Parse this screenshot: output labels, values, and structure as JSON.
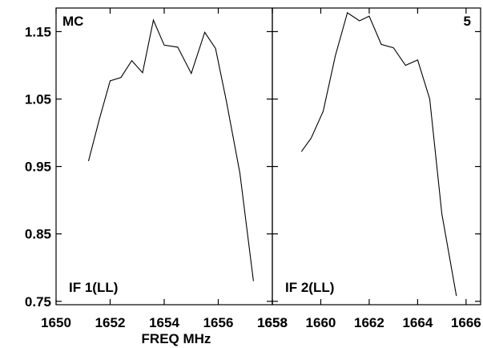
{
  "chart_data": {
    "type": "line",
    "xlabel": "FREQ MHz",
    "ylabel": "",
    "ylim": [
      0.745,
      1.185
    ],
    "y_ticks": [
      0.75,
      0.85,
      0.95,
      1.05,
      1.15
    ],
    "y_tick_labels": [
      "0.75",
      "0.85",
      "0.95",
      "1.05",
      "1.15"
    ],
    "grid": false,
    "panels": [
      {
        "name": "left",
        "xlim": [
          1650,
          1658
        ],
        "x_ticks": [
          1650,
          1652,
          1654,
          1656,
          1658
        ],
        "x_tick_labels": [
          "1650",
          "1652",
          "1654",
          "1656",
          "1658"
        ],
        "top_left_label": "MC",
        "top_right_label": "",
        "bottom_label": "IF 1(LL)",
        "series": [
          {
            "x": [
              1651.2,
              1651.6,
              1652.0,
              1652.4,
              1652.8,
              1653.2,
              1653.6,
              1654.0,
              1654.5,
              1655.0,
              1655.5,
              1655.9,
              1656.3,
              1656.8,
              1657.3
            ],
            "y": [
              0.958,
              1.02,
              1.077,
              1.082,
              1.107,
              1.089,
              1.167,
              1.13,
              1.127,
              1.088,
              1.149,
              1.125,
              1.047,
              0.94,
              0.78
            ]
          }
        ]
      },
      {
        "name": "right",
        "xlim": [
          1658,
          1666.6
        ],
        "x_ticks": [
          1658,
          1660,
          1662,
          1664,
          1666
        ],
        "x_tick_labels": [
          "1658",
          "1660",
          "1662",
          "1664",
          "1666"
        ],
        "top_left_label": "",
        "top_right_label": "5",
        "bottom_label": "IF 2(LL)",
        "series": [
          {
            "x": [
              1659.2,
              1659.6,
              1660.1,
              1660.6,
              1661.1,
              1661.6,
              1662.0,
              1662.5,
              1663.0,
              1663.5,
              1664.0,
              1664.5,
              1665.0,
              1665.6
            ],
            "y": [
              0.972,
              0.992,
              1.032,
              1.114,
              1.178,
              1.166,
              1.173,
              1.131,
              1.126,
              1.1,
              1.108,
              1.05,
              0.88,
              0.758
            ]
          }
        ]
      }
    ]
  }
}
